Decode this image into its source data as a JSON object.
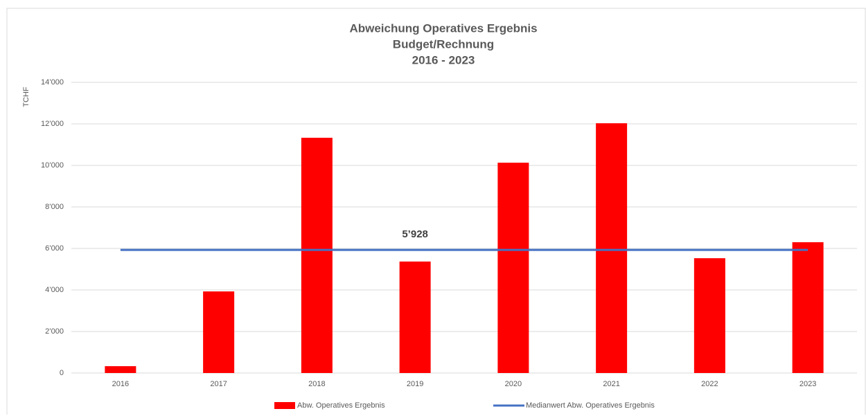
{
  "chart_data": {
    "type": "bar",
    "title": [
      "Abweichung Operatives Ergebnis",
      "Budget/Rechnung",
      "2016 - 2023"
    ],
    "y_label": "TCHF",
    "categories": [
      "2016",
      "2017",
      "2018",
      "2019",
      "2020",
      "2021",
      "2022",
      "2023"
    ],
    "series": [
      {
        "name": "Abw. Operatives Ergebnis",
        "type": "bar",
        "color": "#ff0000",
        "values": [
          330,
          3930,
          11330,
          5370,
          10130,
          12030,
          5530,
          6300
        ]
      },
      {
        "name": "Medianwert Abw. Operatives Ergebnis",
        "type": "line",
        "color": "#4472c4",
        "values": [
          5928,
          5928,
          5928,
          5928,
          5928,
          5928,
          5928,
          5928
        ],
        "value_labels": [
          null,
          null,
          null,
          "5’928",
          null,
          null,
          null,
          null
        ]
      }
    ],
    "ylim": [
      0,
      14000
    ],
    "yticks": [
      0,
      {
        "value": 2000,
        "label": "2’000"
      },
      {
        "value": 4000,
        "label": "4’000"
      },
      {
        "value": 6000,
        "label": "6’000"
      },
      {
        "value": 8000,
        "label": "8’000"
      },
      {
        "value": 10000,
        "label": "10’000"
      },
      {
        "value": 12000,
        "label": "12’000"
      },
      {
        "value": 14000,
        "label": "14’000"
      }
    ],
    "grid": true,
    "legend": "bottom"
  }
}
